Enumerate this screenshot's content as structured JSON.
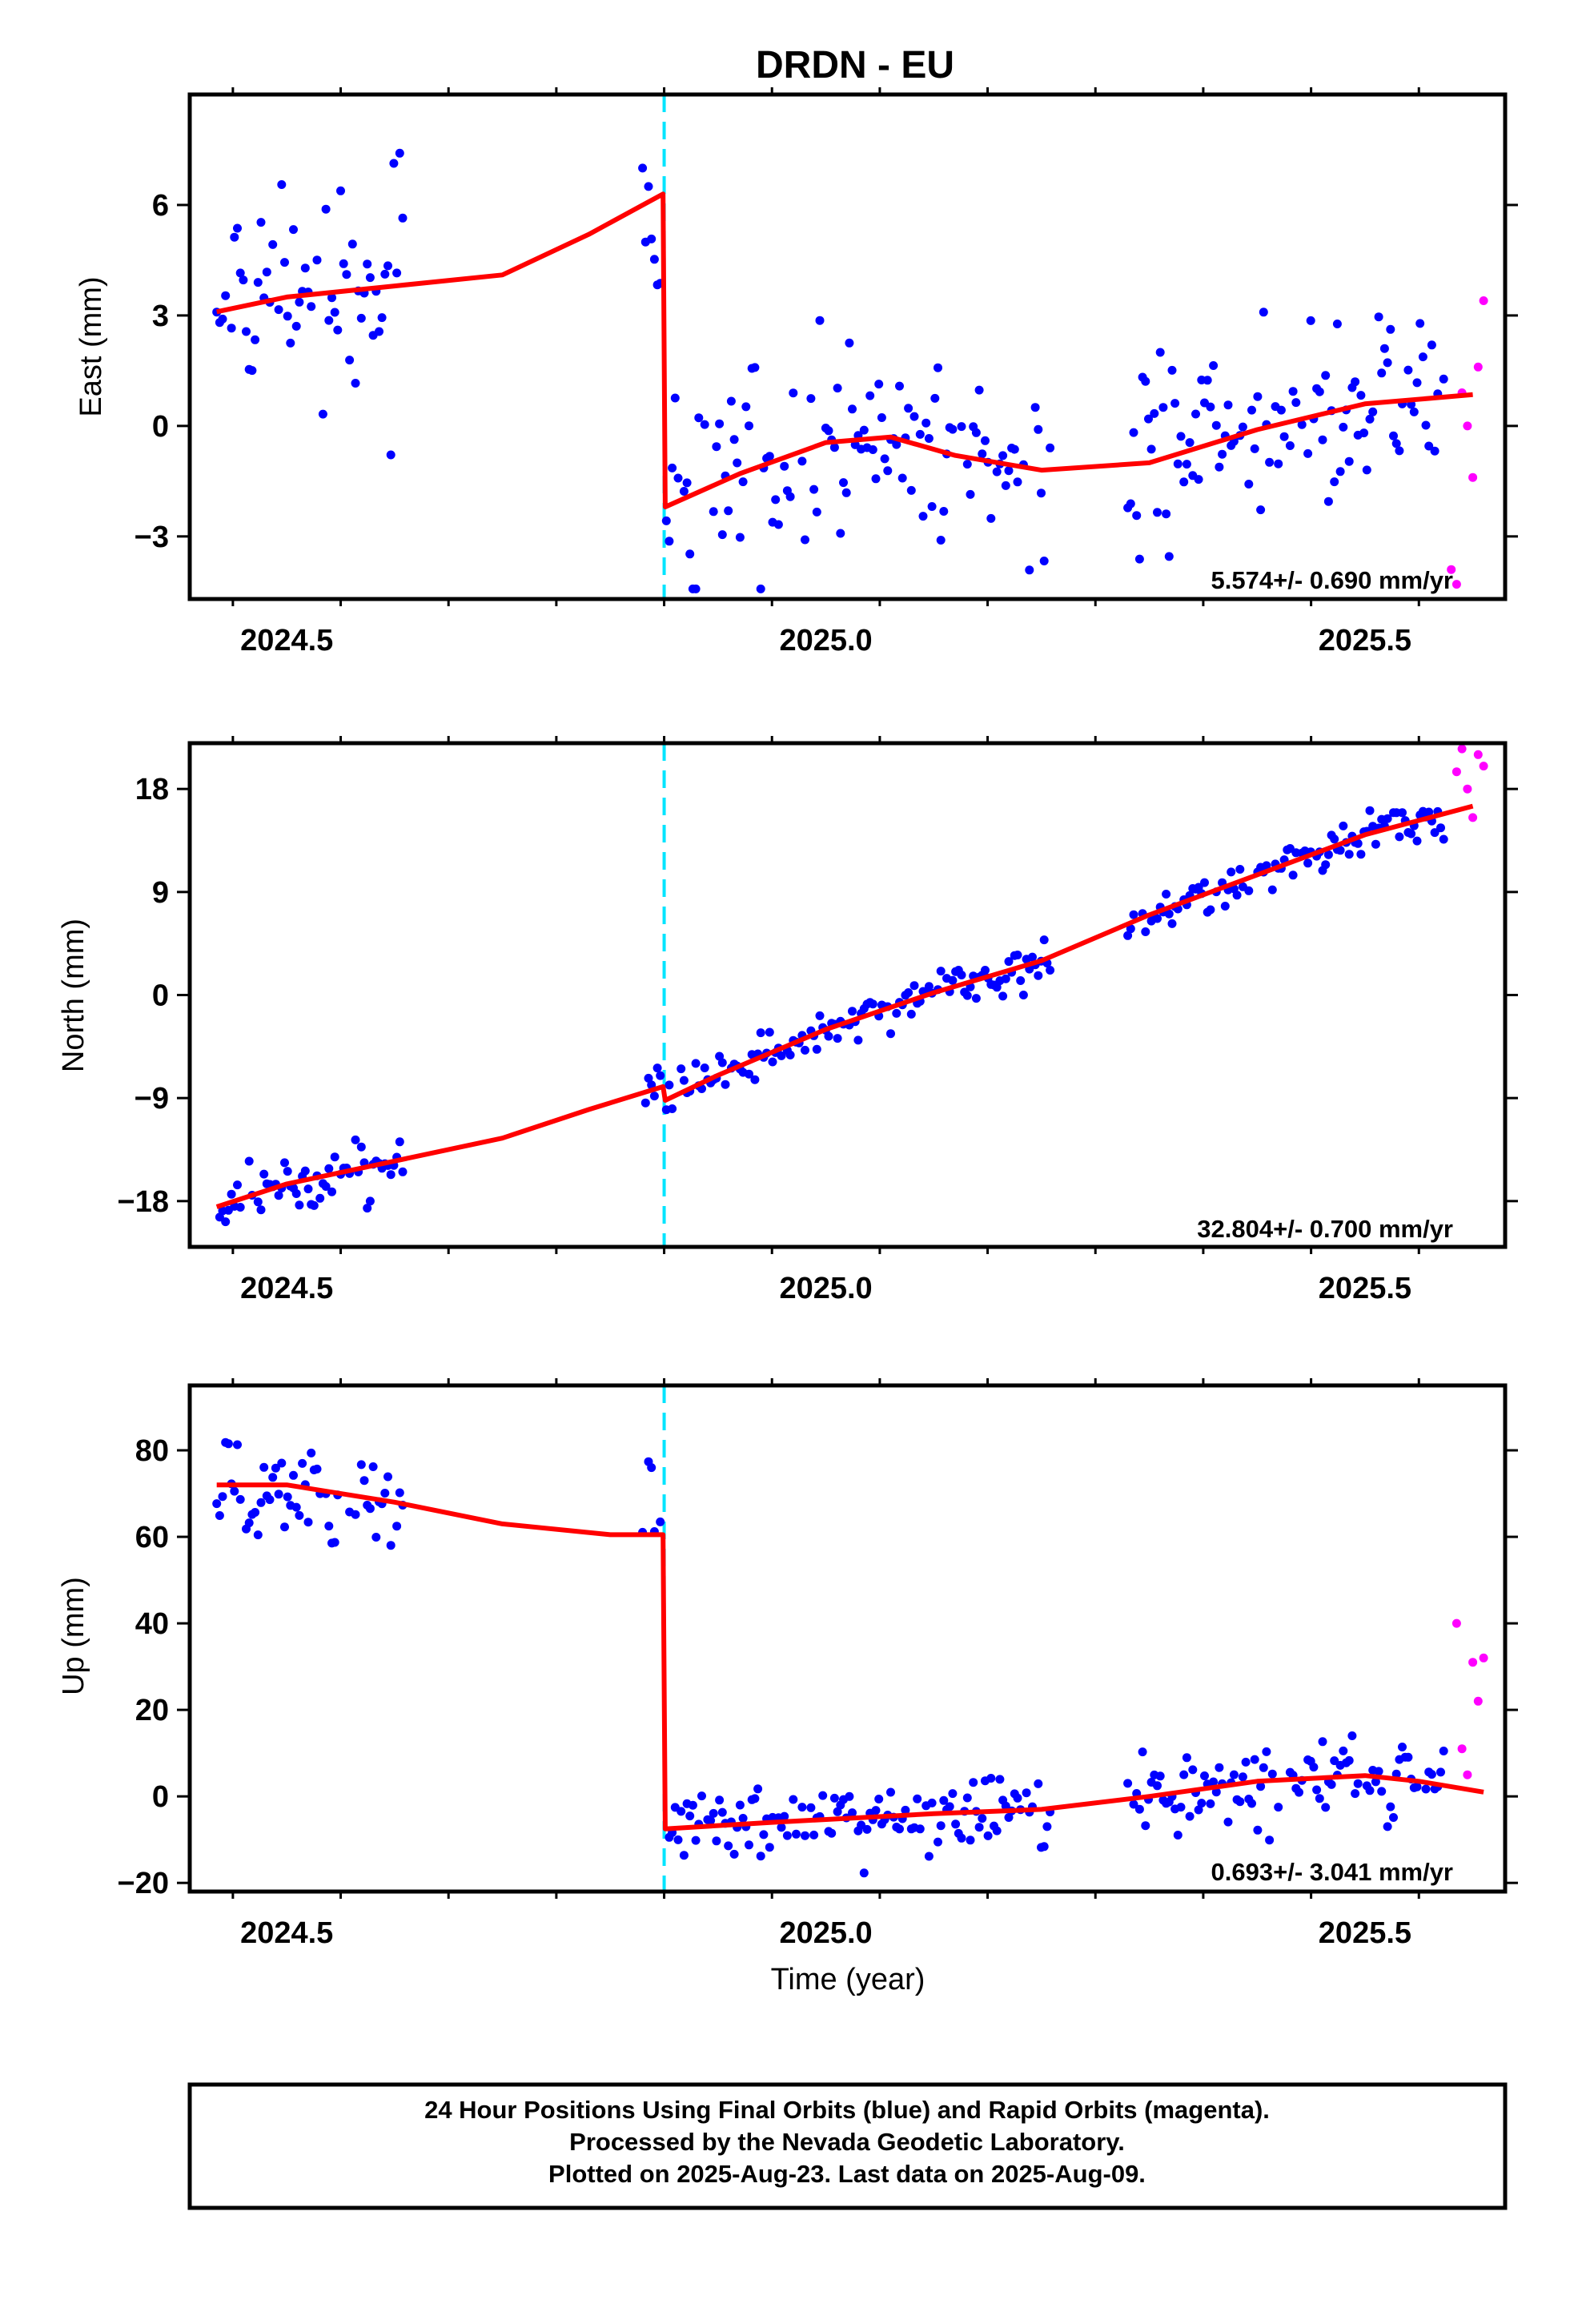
{
  "title": "DRDN - EU",
  "xlabel": "Time (year)",
  "colors": {
    "final": "#0000ff",
    "rapid": "#ff00ff",
    "model": "#ff0000",
    "event": "#00e5ff"
  },
  "footer": {
    "line1": "24 Hour Positions Using Final Orbits (blue) and Rapid Orbits (magenta).",
    "line2": "Processed by the Nevada Geodetic Laboratory.",
    "line3": "Plotted on 2025-Aug-23. Last data on 2025-Aug-09."
  },
  "chart_data": [
    {
      "type": "scatter",
      "ylabel": "East (mm)",
      "xlim": [
        2024.41,
        2025.63
      ],
      "ylim": [
        -4.7,
        9.0
      ],
      "xticks": [
        "2024.5",
        "2025.0",
        "2025.5"
      ],
      "xtick_values": [
        2024.5,
        2025.0,
        2025.5
      ],
      "yticks": [
        "6",
        "3",
        "0",
        "−3"
      ],
      "ytick_values": [
        6,
        3,
        0,
        -3
      ],
      "event_x": 2024.85,
      "rate_label": "5.574+/- 0.690 mm/yr",
      "model": {
        "x": [
          2024.435,
          2024.5,
          2024.6,
          2024.7,
          2024.78,
          2024.849,
          2024.851,
          2024.92,
          2025.0,
          2025.06,
          2025.12,
          2025.2,
          2025.3,
          2025.4,
          2025.5,
          2025.6
        ],
        "y": [
          3.1,
          3.5,
          3.8,
          4.1,
          5.2,
          6.3,
          -2.2,
          -1.3,
          -0.45,
          -0.3,
          -0.8,
          -1.2,
          -1.0,
          -0.1,
          0.6,
          0.85
        ]
      },
      "rapid": {
        "x": [
          2025.58,
          2025.585,
          2025.59,
          2025.595,
          2025.6,
          2025.605,
          2025.61
        ],
        "y": [
          -3.9,
          -4.3,
          0.9,
          0.0,
          -1.4,
          1.6,
          3.4
        ]
      }
    },
    {
      "type": "scatter",
      "ylabel": "North (mm)",
      "xlim": [
        2024.41,
        2025.63
      ],
      "ylim": [
        -22.0,
        22.0
      ],
      "xticks": [
        "2024.5",
        "2025.0",
        "2025.5"
      ],
      "xtick_values": [
        2024.5,
        2025.0,
        2025.5
      ],
      "yticks": [
        "18",
        "9",
        "0",
        "−9",
        "−18"
      ],
      "ytick_values": [
        18,
        9,
        0,
        -9,
        -18
      ],
      "event_x": 2024.85,
      "rate_label": "32.804+/- 0.700 mm/yr",
      "model": {
        "x": [
          2024.435,
          2024.5,
          2024.6,
          2024.7,
          2024.78,
          2024.849,
          2024.851,
          2024.9,
          2025.0,
          2025.1,
          2025.2,
          2025.3,
          2025.4,
          2025.5,
          2025.6
        ],
        "y": [
          -18.5,
          -16.5,
          -14.5,
          -12.5,
          -10.0,
          -8.0,
          -9.2,
          -7.0,
          -3.0,
          0.2,
          3.0,
          7.0,
          10.5,
          14.0,
          16.5
        ]
      },
      "rapid": {
        "x": [
          2025.585,
          2025.59,
          2025.595,
          2025.6,
          2025.605,
          2025.61
        ],
        "y": [
          19.5,
          21.5,
          18.0,
          15.5,
          21.0,
          20.0
        ]
      }
    },
    {
      "type": "scatter",
      "ylabel": "Up (mm)",
      "xlim": [
        2024.41,
        2025.63
      ],
      "ylim": [
        -22.0,
        95.0
      ],
      "xticks": [
        "2024.5",
        "2025.0",
        "2025.5"
      ],
      "xtick_values": [
        2024.5,
        2025.0,
        2025.5
      ],
      "yticks": [
        "80",
        "60",
        "40",
        "20",
        "0",
        "−20"
      ],
      "ytick_values": [
        80,
        60,
        40,
        20,
        0,
        -20
      ],
      "event_x": 2024.85,
      "rate_label": "0.693+/- 3.041 mm/yr",
      "model": {
        "x": [
          2024.435,
          2024.5,
          2024.6,
          2024.7,
          2024.8,
          2024.849,
          2024.851,
          2024.95,
          2025.1,
          2025.2,
          2025.3,
          2025.4,
          2025.5,
          2025.55,
          2025.61
        ],
        "y": [
          72.0,
          72.0,
          68.0,
          63.0,
          60.5,
          60.5,
          -7.5,
          -6.0,
          -4.0,
          -3.0,
          0.0,
          3.5,
          4.8,
          3.5,
          1.0
        ]
      },
      "rapid": {
        "x": [
          2025.585,
          2025.59,
          2025.595,
          2025.6,
          2025.605,
          2025.61
        ],
        "y": [
          40.0,
          11.0,
          5.0,
          31.0,
          22.0,
          32.0
        ]
      }
    }
  ]
}
